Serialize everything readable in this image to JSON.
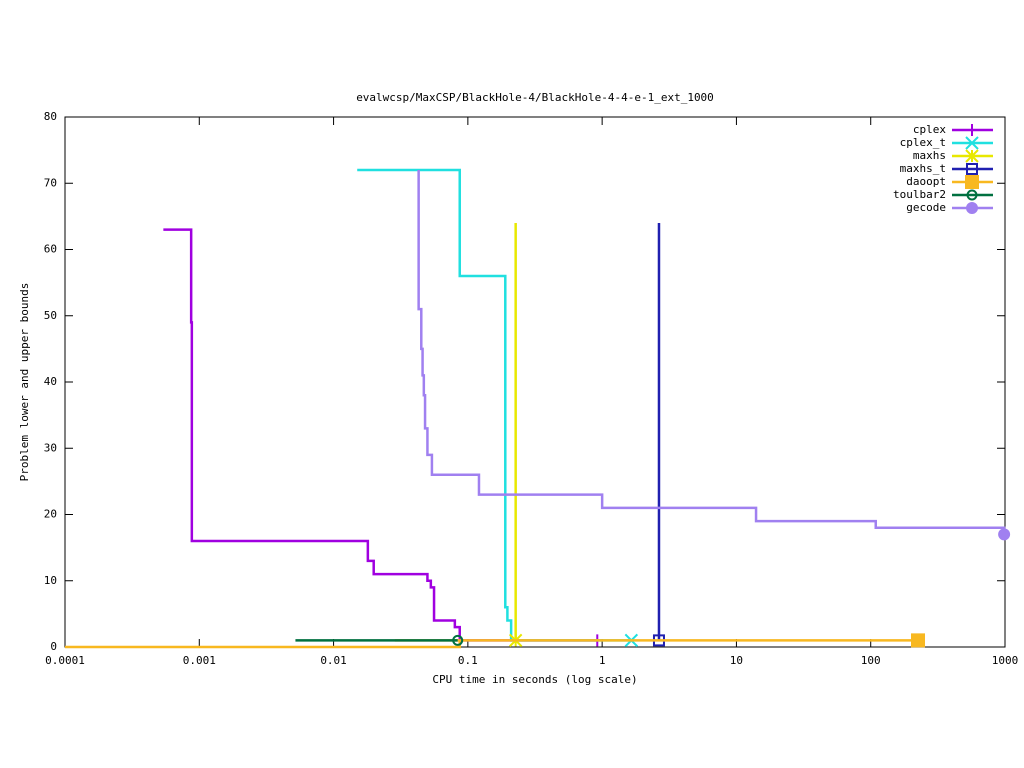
{
  "chart_data": {
    "type": "line",
    "title": "evalwcsp/MaxCSP/BlackHole-4/BlackHole-4-4-e-1_ext_1000",
    "xlabel": "CPU time in seconds (log scale)",
    "ylabel": "Problem lower and upper bounds",
    "xlog": true,
    "step": true,
    "legend": "top-right",
    "xlim": [
      0.0001,
      1000
    ],
    "xticks": [
      0.0001,
      0.001,
      0.01,
      0.1,
      1,
      10,
      100,
      1000
    ],
    "ylim": [
      0,
      80
    ],
    "yticks": [
      0,
      10,
      20,
      30,
      40,
      50,
      60,
      70,
      80
    ],
    "series": [
      {
        "name": "cplex",
        "color": "#a000e0",
        "marker": "plus",
        "x": [
          0.00054,
          0.00087,
          0.00088,
          0.018,
          0.0199,
          0.05,
          0.053,
          0.056,
          0.08,
          0.087,
          0.55,
          0.92
        ],
        "values": [
          63,
          49,
          16,
          13,
          11,
          10,
          9,
          4,
          3,
          1,
          1,
          1
        ]
      },
      {
        "name": "cplex_t",
        "color": "#20e0e0",
        "marker": "cross",
        "x": [
          0.015,
          0.087,
          0.19,
          0.197,
          0.21,
          0.23,
          0.7,
          1.65
        ],
        "values": [
          72,
          56,
          6,
          4,
          1,
          1,
          1,
          1
        ]
      },
      {
        "name": "maxhs",
        "color": "#e8e800",
        "marker": "star",
        "x": [
          0.227,
          0.227
        ],
        "values": [
          64,
          1
        ]
      },
      {
        "name": "maxhs_t",
        "color": "#2020b0",
        "marker": "square",
        "x": [
          2.65,
          2.65
        ],
        "values": [
          64,
          1
        ]
      },
      {
        "name": "daoopt",
        "color": "#f8b820",
        "marker": "square-filled",
        "x": [
          0.0001,
          0.087,
          0.0286,
          225
        ],
        "values": [
          0,
          1,
          1,
          1
        ]
      },
      {
        "name": "toulbar2",
        "color": "#007040",
        "marker": "circle",
        "x": [
          0.0052,
          0.084
        ],
        "values": [
          1,
          1
        ]
      },
      {
        "name": "gecode",
        "color": "#a080f0",
        "marker": "circle-filled",
        "x": [
          0.043,
          0.043,
          0.045,
          0.046,
          0.047,
          0.048,
          0.05,
          0.054,
          0.121,
          1.0,
          14,
          109,
          985
        ],
        "values": [
          72,
          51,
          45,
          41,
          38,
          33,
          29,
          26,
          23,
          21,
          19,
          18,
          17
        ]
      }
    ]
  }
}
